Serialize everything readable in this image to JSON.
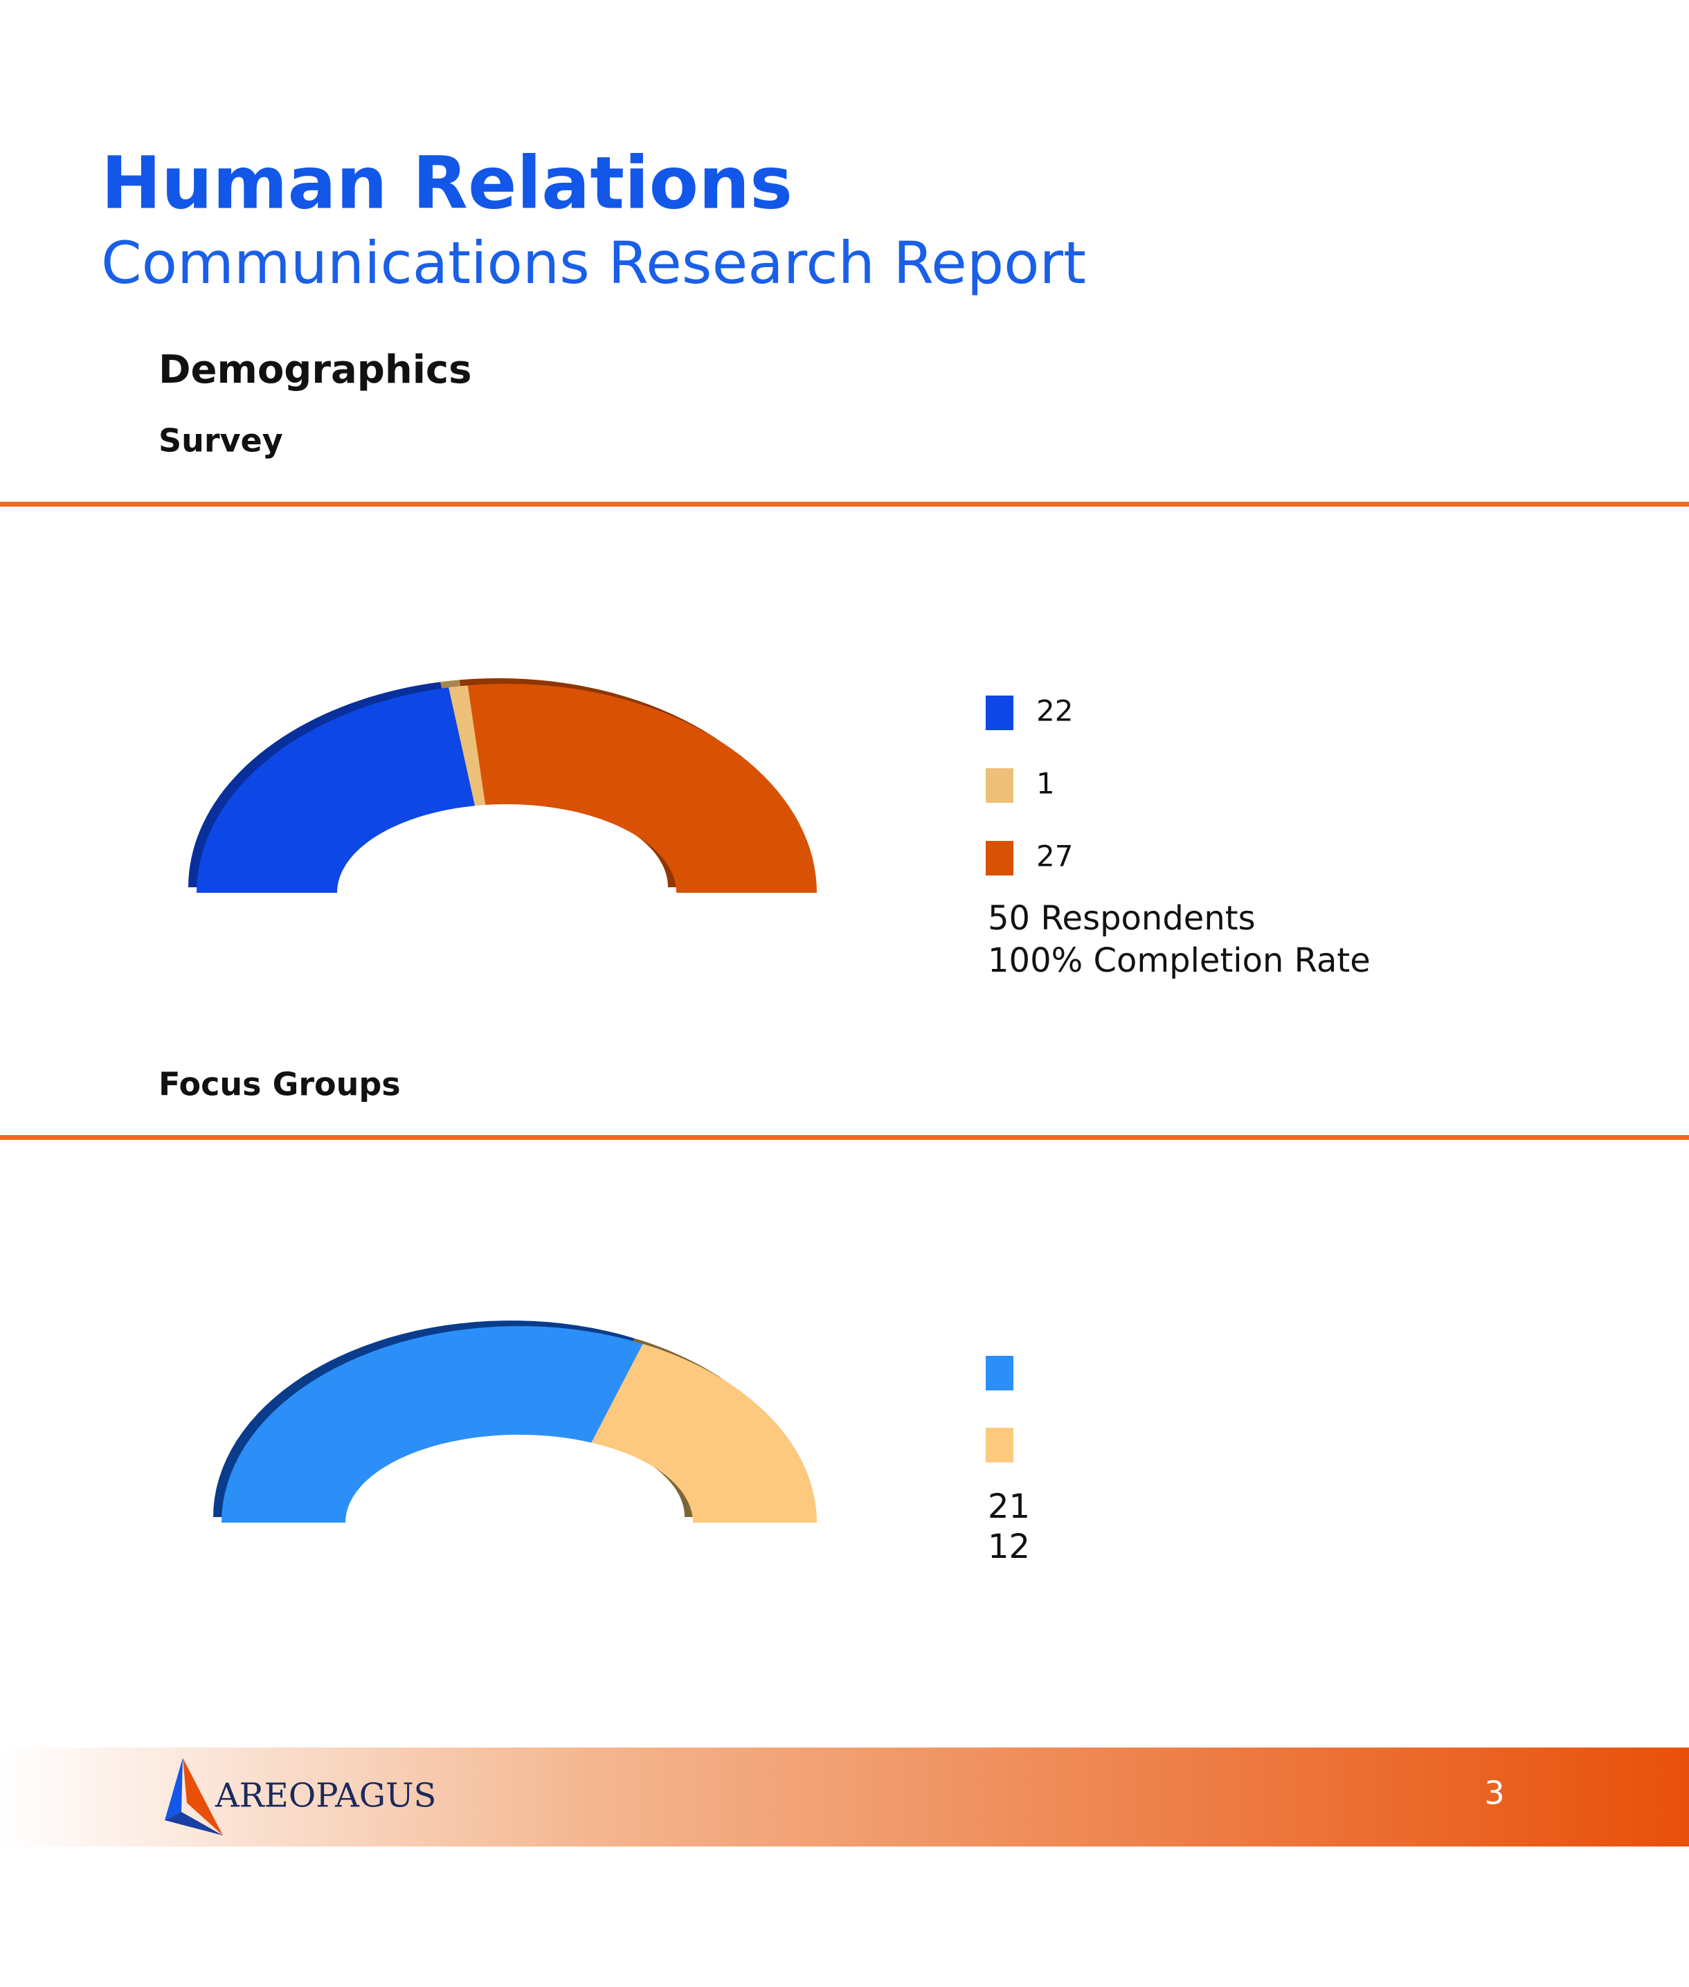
{
  "header": {
    "title": "Human Relations",
    "subtitle": "Communications Research Report"
  },
  "section_title": "Demographics",
  "chart_data": [
    {
      "type": "semi-donut",
      "title": "Survey",
      "values": [
        22,
        1,
        27
      ],
      "colors": [
        "#0d47e6",
        "#ecc079",
        "#d95204"
      ],
      "depth_colors": [
        "#082f9c",
        "#a8864f",
        "#8f3603"
      ],
      "notes": [
        "50 Respondents",
        "100% Completion Rate"
      ]
    },
    {
      "type": "semi-donut",
      "title": "Focus Groups",
      "values": [
        21,
        12
      ],
      "colors": [
        "#2c8ff7",
        "#fdc97f"
      ],
      "depth_colors": [
        "#0a3c8c",
        "#7d6636"
      ]
    }
  ],
  "footer": {
    "logo": "AREOPAGUS",
    "page": "3"
  }
}
